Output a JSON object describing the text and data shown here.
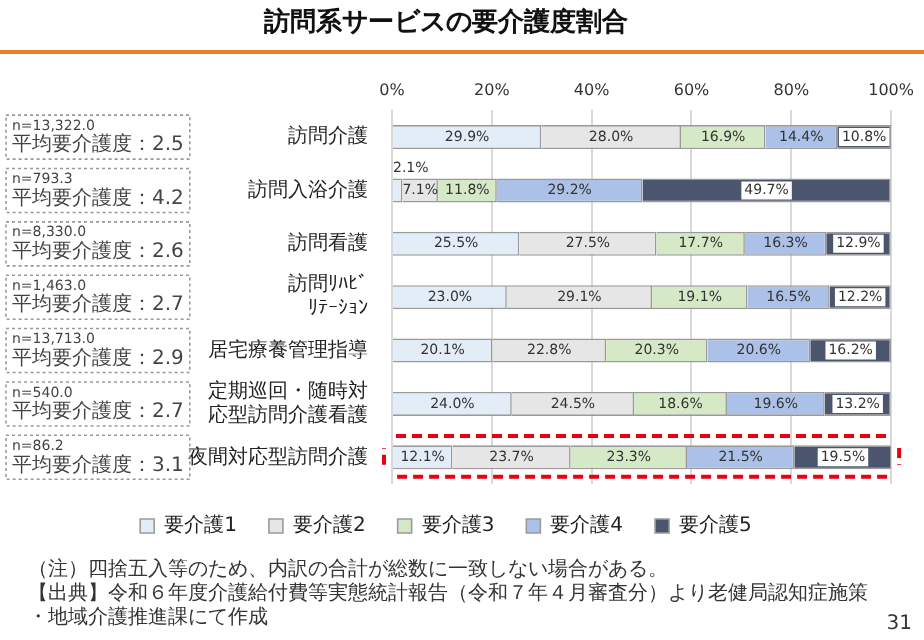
{
  "chart_data": {
    "type": "bar",
    "orientation": "horizontal",
    "stacked": true,
    "title": "訪問系サービスの要介護度割合",
    "categories": [
      "訪問介護",
      "訪問入浴介護",
      "訪問看護",
      "訪問ﾘﾊﾋﾞﾘﾃｰｼｮﾝ",
      "居宅療養管理指導",
      "定期巡回・随時対応型訪問介護看護",
      "夜間対応型訪問介護"
    ],
    "series": [
      {
        "name": "要介護1",
        "color": "#e2edf8",
        "values": [
          29.9,
          2.1,
          25.5,
          23.0,
          20.1,
          24.0,
          12.1
        ],
        "value_labels": [
          "29.9%",
          "2.1%",
          "25.5%",
          "23.0%",
          "20.1%",
          "24.0%",
          "12.1%"
        ]
      },
      {
        "name": "要介護2",
        "color": "#e6e6e6",
        "values": [
          28.0,
          7.1,
          27.5,
          29.1,
          22.8,
          24.5,
          23.7
        ],
        "value_labels": [
          "28.0%",
          "7.1%",
          "27.5%",
          "29.1%",
          "22.8%",
          "24.5%",
          "23.7%"
        ]
      },
      {
        "name": "要介護3",
        "color": "#d6e9c6",
        "values": [
          16.9,
          11.8,
          17.7,
          19.1,
          20.3,
          18.6,
          23.3
        ],
        "value_labels": [
          "16.9%",
          "11.8%",
          "17.7%",
          "19.1%",
          "20.3%",
          "18.6%",
          "23.3%"
        ]
      },
      {
        "name": "要介護4",
        "color": "#abc1e7",
        "values": [
          14.4,
          29.2,
          16.3,
          16.5,
          20.6,
          19.6,
          21.5
        ],
        "value_labels": [
          "14.4%",
          "29.2%",
          "16.3%",
          "16.5%",
          "20.6%",
          "19.6%",
          "21.5%"
        ]
      },
      {
        "name": "要介護5",
        "color": "#4b566e",
        "values": [
          10.8,
          49.7,
          12.9,
          12.2,
          16.2,
          13.2,
          19.5
        ],
        "value_labels": [
          "10.8%",
          "49.7%",
          "12.9%",
          "12.2%",
          "16.2%",
          "13.2%",
          "19.5%"
        ]
      }
    ],
    "xlim": [
      0,
      100
    ],
    "xticks": [
      {
        "value": 0,
        "label": "0%"
      },
      {
        "value": 20,
        "label": "20%"
      },
      {
        "value": 40,
        "label": "40%"
      },
      {
        "value": 60,
        "label": "60%"
      },
      {
        "value": 80,
        "label": "80%"
      },
      {
        "value": 100,
        "label": "100%"
      }
    ],
    "grid": "x",
    "legend": "bottom",
    "annotations": [
      "n=13,322.0\n平均要介護度：2.5",
      "n=793.3\n平均要介護度：4.2",
      "n=8,330.0\n平均要介護度：2.6",
      "n=1,463.0\n平均要介護度：2.7",
      "n=13,713.0\n平均要介護度：2.9",
      "n=540.0\n平均要介護度：2.7",
      "n=86.2\n平均要介護度：3.1",
      "（注）四捨五入等のため、内訳の合計が総数に一致しない場合がある。",
      "【出典】令和６年度介護給付費等実態統計報告（令和７年４月審査分）より老健局認知症施策・地域介護推進課にて作成",
      "31"
    ]
  }
}
